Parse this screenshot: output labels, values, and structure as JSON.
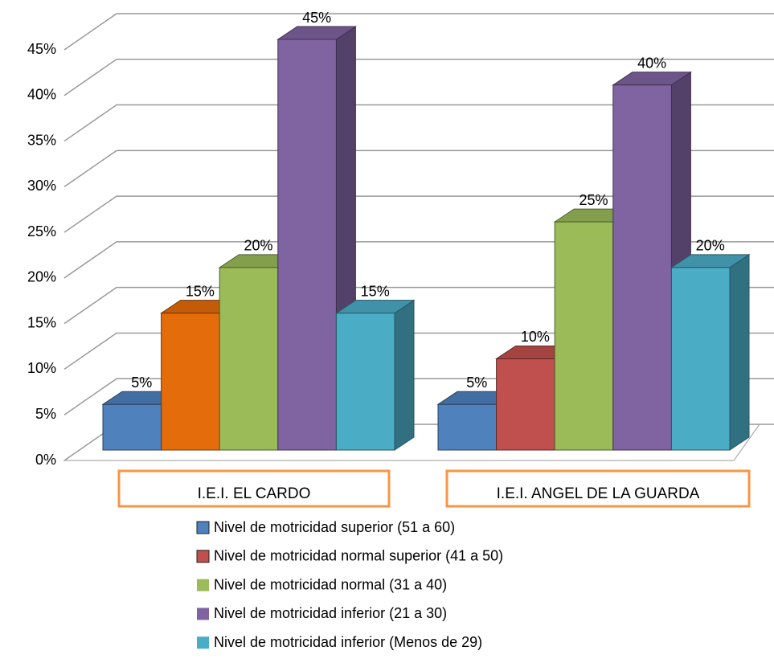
{
  "chart_data": {
    "type": "bar3d",
    "categories": [
      "I.E.I.  EL CARDO",
      "I.E.I. ANGEL DE LA GUARDA"
    ],
    "series": [
      {
        "name": "Nivel de motricidad superior (51 a 60)",
        "color": "#4f81bd",
        "values": [
          5,
          5
        ],
        "value_labels": [
          "5%",
          "5%"
        ]
      },
      {
        "name": "Nivel de motricidad normal superior  (41 a 50)",
        "color": "#c0504d",
        "colors": [
          "#e46c0a",
          "#c0504d"
        ],
        "values": [
          15,
          10
        ],
        "value_labels": [
          "15%",
          "10%"
        ]
      },
      {
        "name": "Nivel de motricidad normal (31 a 40)",
        "color": "#9bbb59",
        "values": [
          20,
          25
        ],
        "value_labels": [
          "20%",
          "25%"
        ]
      },
      {
        "name": "Nivel de motricidad inferior  (21 a 30)",
        "color": "#8064a2",
        "values": [
          45,
          40
        ],
        "value_labels": [
          "45%",
          "40%"
        ]
      },
      {
        "name": "Nivel de motricidad inferior (Menos de 29)",
        "color": "#4bacc6",
        "values": [
          15,
          20
        ],
        "value_labels": [
          "15%",
          "20%"
        ]
      }
    ],
    "ylim": [
      0,
      45
    ],
    "yticks": [
      {
        "value": 0,
        "label": "0%"
      },
      {
        "value": 5,
        "label": "5%"
      },
      {
        "value": 10,
        "label": "10%"
      },
      {
        "value": 15,
        "label": "15%"
      },
      {
        "value": 20,
        "label": "20%"
      },
      {
        "value": 25,
        "label": "25%"
      },
      {
        "value": 30,
        "label": "30%"
      },
      {
        "value": 35,
        "label": "35%"
      },
      {
        "value": 40,
        "label": "40%"
      },
      {
        "value": 45,
        "label": "45%"
      }
    ],
    "grid": true,
    "legend": "bottom"
  }
}
